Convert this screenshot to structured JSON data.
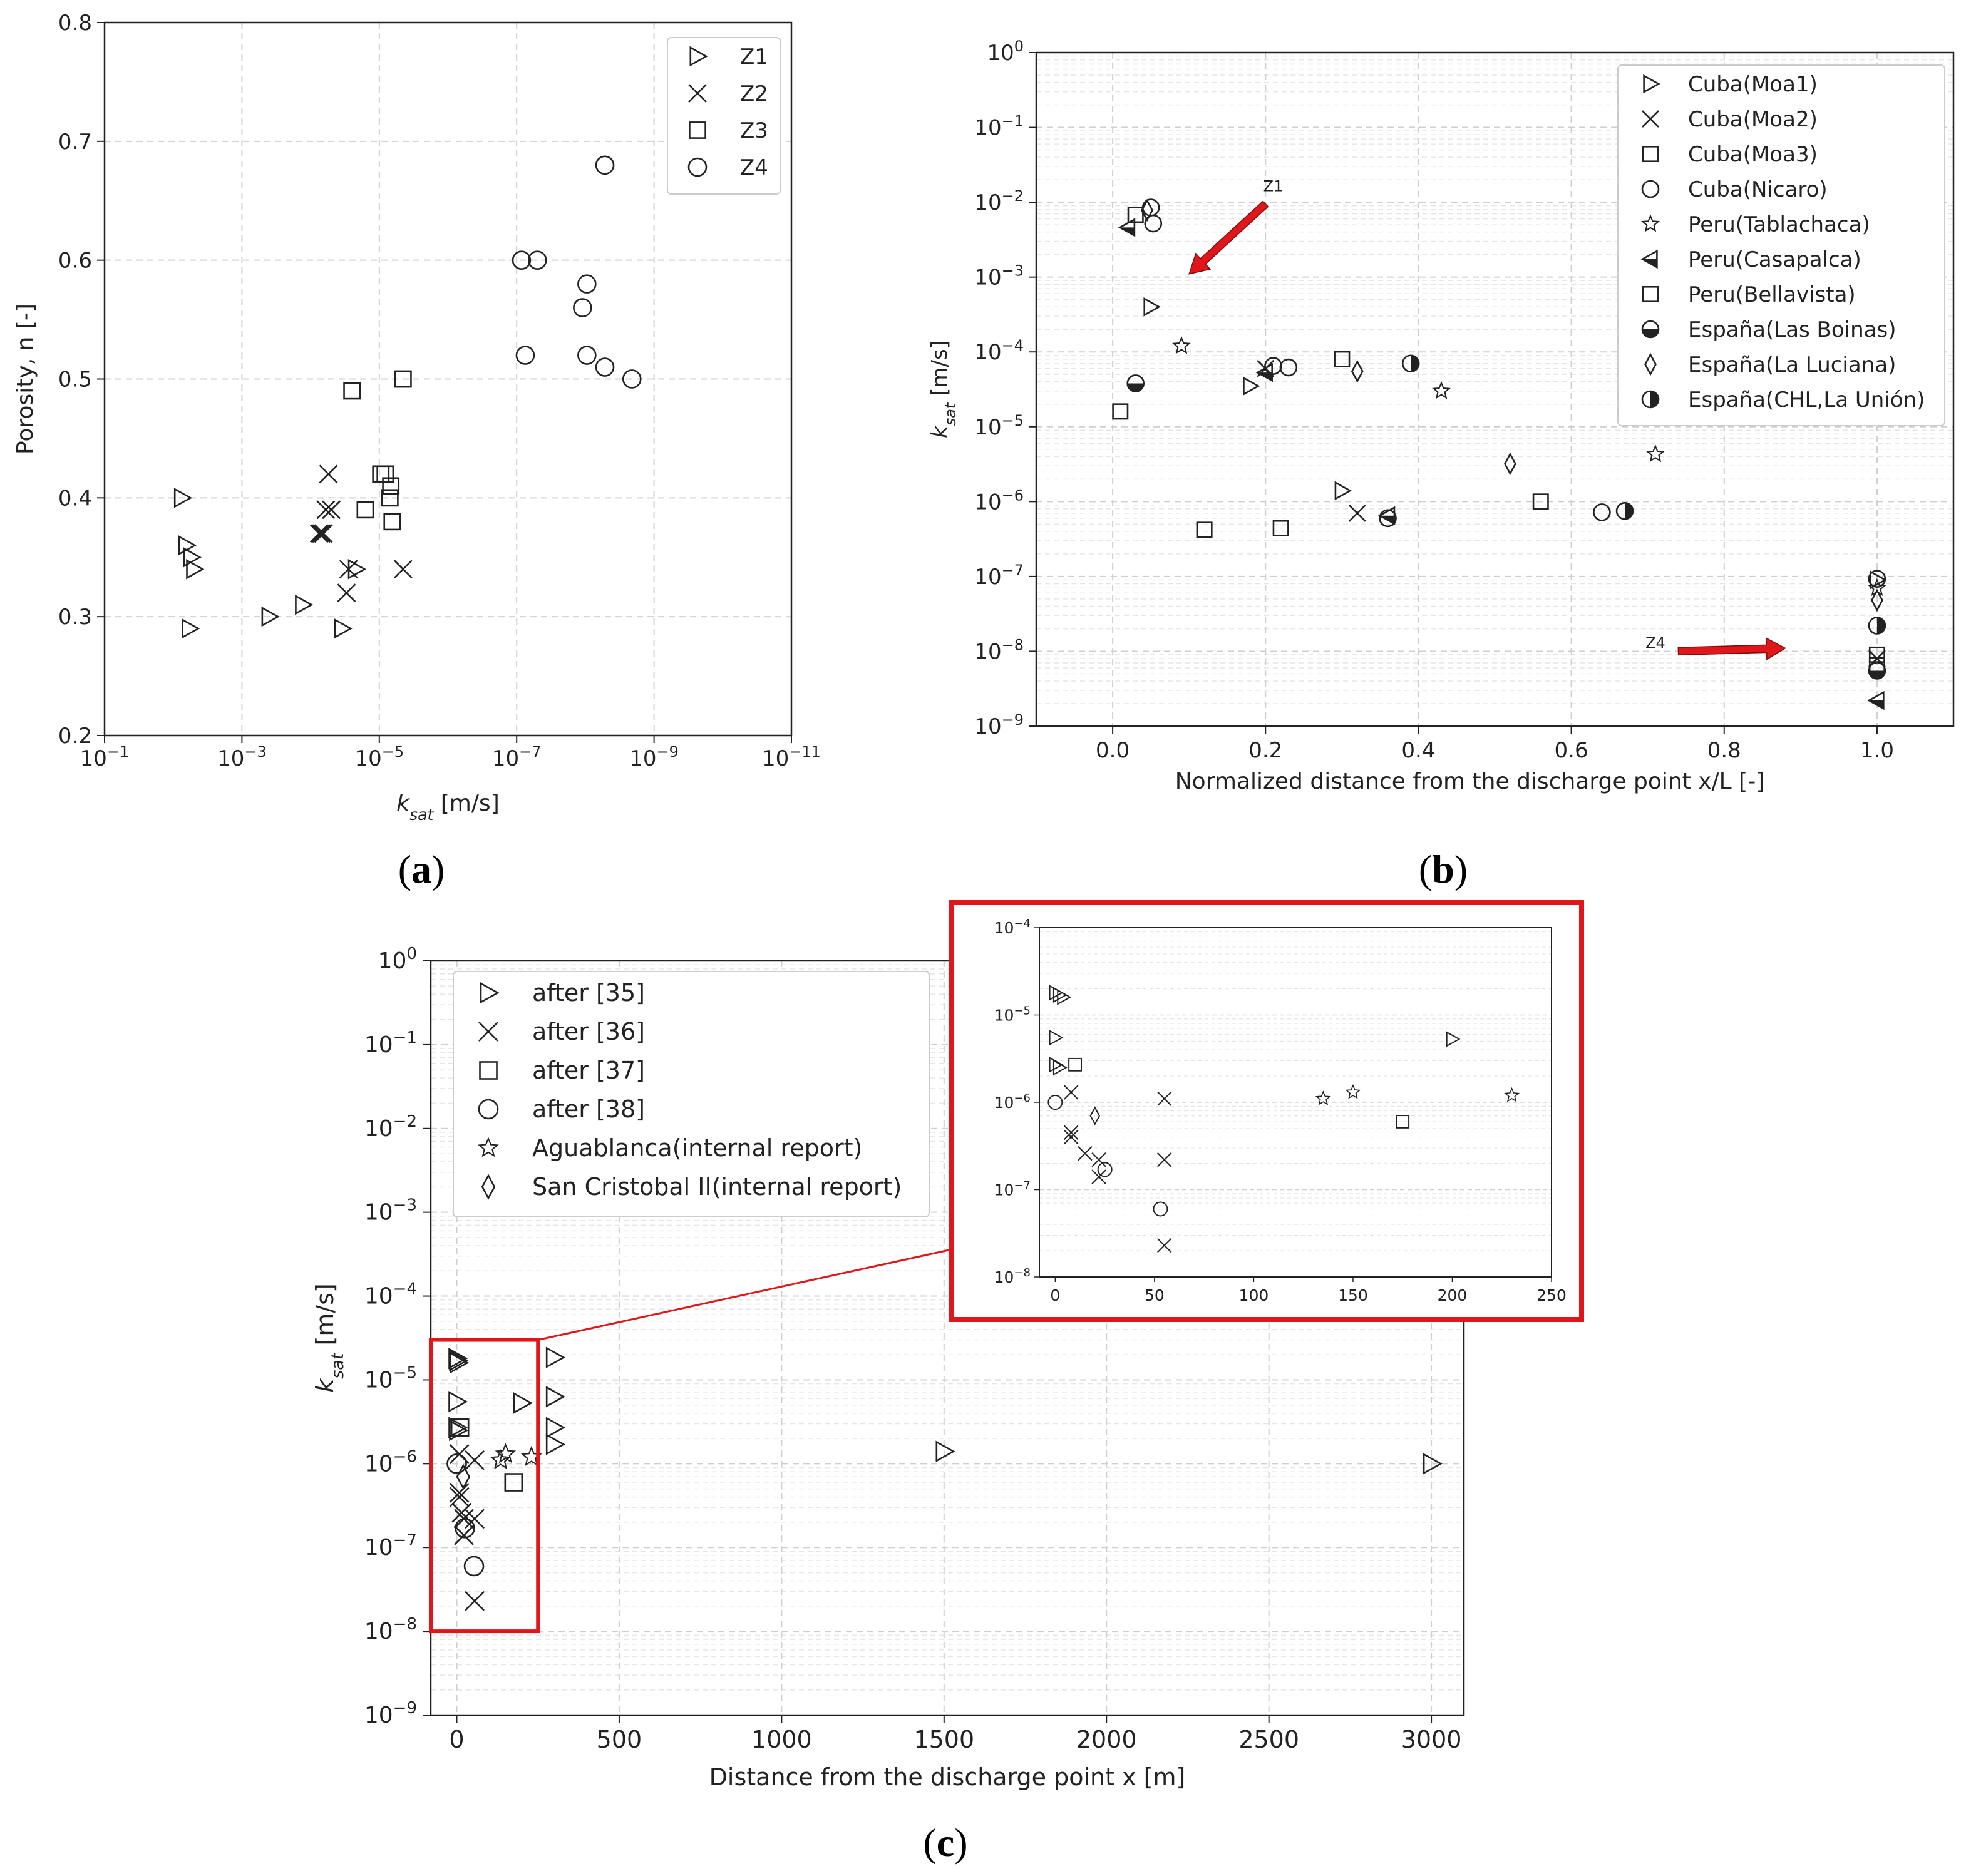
{
  "colors": {
    "frame": "#222222",
    "grid": "#cfcfcf",
    "minor_grid": "#e6e6e6",
    "red": "#e0161b",
    "marker": "#222222"
  },
  "chart_data": [
    {
      "id": "a",
      "panel_label": "a",
      "type": "scatter",
      "xscale": "log",
      "x_reversed": true,
      "xlim": [
        0.1,
        1e-11
      ],
      "ylim": [
        0.2,
        0.8
      ],
      "xlabel_main": "k",
      "xlabel_sub": "sat",
      "xlabel_unit": " [m/s]",
      "ylabel": "Porosity, n [-]",
      "x_ticks": [
        {
          "exp": -1
        },
        {
          "exp": -3
        },
        {
          "exp": -5
        },
        {
          "exp": -7
        },
        {
          "exp": -9
        },
        {
          "exp": -11
        }
      ],
      "y_ticks": [
        "0.2",
        "0.3",
        "0.4",
        "0.5",
        "0.6",
        "0.7",
        "0.8"
      ],
      "legend_position": "top-right",
      "series": [
        {
          "name": "Z1",
          "marker": "triangle-right",
          "points": [
            [
              0.0075,
              0.4
            ],
            [
              0.0065,
              0.36
            ],
            [
              0.0055,
              0.35
            ],
            [
              0.005,
              0.34
            ],
            [
              0.0058,
              0.29
            ],
            [
              0.0004,
              0.3
            ],
            [
              0.00013,
              0.31
            ],
            [
              3.5e-05,
              0.29
            ],
            [
              2.2e-05,
              0.34
            ]
          ]
        },
        {
          "name": "Z2",
          "marker": "x",
          "points": [
            [
              5.5e-05,
              0.42
            ],
            [
              6e-05,
              0.39
            ],
            [
              5e-05,
              0.39
            ],
            [
              6.5e-05,
              0.37
            ],
            [
              7.5e-05,
              0.37
            ],
            [
              7e-05,
              0.37
            ],
            [
              3e-05,
              0.32
            ],
            [
              2.8e-05,
              0.34
            ],
            [
              4.5e-06,
              0.34
            ]
          ]
        },
        {
          "name": "Z3",
          "marker": "square",
          "points": [
            [
              2.5e-05,
              0.49
            ],
            [
              4.5e-06,
              0.5
            ],
            [
              1.6e-05,
              0.39
            ],
            [
              9.5e-06,
              0.42
            ],
            [
              8.2e-06,
              0.42
            ],
            [
              6.8e-06,
              0.41
            ],
            [
              7e-06,
              0.4
            ],
            [
              6.5e-06,
              0.38
            ]
          ]
        },
        {
          "name": "Z4",
          "marker": "circle",
          "points": [
            [
              8.5e-08,
              0.6
            ],
            [
              5e-08,
              0.6
            ],
            [
              7.5e-08,
              0.52
            ],
            [
              9.5e-09,
              0.58
            ],
            [
              1.1e-08,
              0.56
            ],
            [
              9.5e-09,
              0.52
            ],
            [
              5.2e-09,
              0.68
            ],
            [
              5.2e-09,
              0.51
            ],
            [
              2.1e-09,
              0.5
            ]
          ]
        }
      ]
    },
    {
      "id": "b",
      "panel_label": "b",
      "type": "scatter",
      "yscale": "log",
      "xlim": [
        -0.1,
        1.1
      ],
      "ylim": [
        1e-09,
        1
      ],
      "xlabel": "Normalized distance from the discharge point x/L [-]",
      "ylabel_main": "k",
      "ylabel_sub": "sat",
      "ylabel_unit": " [m/s]",
      "x_ticks": [
        "0.0",
        "0.2",
        "0.4",
        "0.6",
        "0.8",
        "1.0"
      ],
      "y_ticks": [
        {
          "exp": 0
        },
        {
          "exp": -1
        },
        {
          "exp": -2
        },
        {
          "exp": -3
        },
        {
          "exp": -4
        },
        {
          "exp": -5
        },
        {
          "exp": -6
        },
        {
          "exp": -7
        },
        {
          "exp": -8
        },
        {
          "exp": -9
        }
      ],
      "legend_position": "top-right",
      "annotations": [
        {
          "text": "Z1",
          "text_at": [
            0.21,
            0.014
          ],
          "arrow_from": [
            0.2,
            0.0095
          ],
          "arrow_to": [
            0.1,
            0.0011
          ]
        },
        {
          "text": "Z4",
          "text_at": [
            0.71,
            1.1e-08
          ],
          "arrow_from": [
            0.74,
            1e-08
          ],
          "arrow_to": [
            0.88,
            1.1e-08
          ]
        }
      ],
      "series": [
        {
          "name": "Cuba(Moa1)",
          "marker": "triangle-right",
          "points": [
            [
              0.05,
              0.0004
            ],
            [
              0.18,
              3.5e-05
            ],
            [
              0.3,
              1.4e-06
            ],
            [
              1.0,
              9e-08
            ]
          ]
        },
        {
          "name": "Cuba(Moa2)",
          "marker": "x",
          "points": [
            [
              0.2,
              6e-05
            ],
            [
              0.32,
              7e-07
            ],
            [
              1.0,
              8e-09
            ]
          ]
        },
        {
          "name": "Cuba(Moa3)",
          "marker": "square",
          "points": [
            [
              0.01,
              1.6e-05
            ],
            [
              0.12,
              4.2e-07
            ],
            [
              0.22,
              4.4e-07
            ],
            [
              0.3,
              8e-05
            ],
            [
              0.56,
              1e-06
            ],
            [
              1.0,
              9e-09
            ]
          ]
        },
        {
          "name": "Cuba(Nicaro)",
          "marker": "circle",
          "points": [
            [
              0.05,
              0.0085
            ],
            [
              0.053,
              0.0052
            ],
            [
              0.21,
              6.5e-05
            ],
            [
              0.23,
              6.2e-05
            ],
            [
              0.36,
              6e-07
            ],
            [
              0.64,
              7.2e-07
            ],
            [
              1.0,
              9.3e-08
            ]
          ]
        },
        {
          "name": "Peru(Tablachaca)",
          "marker": "star",
          "points": [
            [
              0.09,
              0.00012
            ],
            [
              0.43,
              3e-05
            ],
            [
              0.71,
              4.3e-06
            ],
            [
              1.0,
              7e-08
            ]
          ]
        },
        {
          "name": "Peru(Casapalca)",
          "marker": "triangle-left-half",
          "points": [
            [
              0.02,
              0.0046
            ],
            [
              0.2,
              5.3e-05
            ],
            [
              0.36,
              6.5e-07
            ],
            [
              1.0,
              2.2e-09
            ]
          ]
        },
        {
          "name": "Peru(Bellavista)",
          "marker": "square",
          "points": [
            [
              0.03,
              0.0068
            ],
            [
              1.0,
              6.5e-09
            ]
          ]
        },
        {
          "name": "España(Las Boinas)",
          "marker": "circle-bottom",
          "points": [
            [
              0.03,
              3.8e-05
            ],
            [
              1.0,
              5.5e-09
            ]
          ]
        },
        {
          "name": "España(La Luciana)",
          "marker": "diamond",
          "points": [
            [
              0.045,
              0.0078
            ],
            [
              0.32,
              5.5e-05
            ],
            [
              0.52,
              3.2e-06
            ],
            [
              1.0,
              4.8e-08
            ]
          ]
        },
        {
          "name": "España(CHL,La Unión)",
          "marker": "circle-right",
          "points": [
            [
              0.39,
              7e-05
            ],
            [
              0.67,
              7.5e-07
            ],
            [
              1.0,
              2.2e-08
            ]
          ]
        }
      ]
    },
    {
      "id": "c",
      "panel_label": "c",
      "type": "scatter",
      "yscale": "log",
      "xlim": [
        -80,
        3100
      ],
      "ylim": [
        1e-09,
        1
      ],
      "xlabel": "Distance from the discharge point x [m]",
      "ylabel_main": "k",
      "ylabel_sub": "sat",
      "ylabel_unit": " [m/s]",
      "x_ticks": [
        "0",
        "500",
        "1000",
        "1500",
        "2000",
        "2500",
        "3000"
      ],
      "y_ticks": [
        {
          "exp": 0
        },
        {
          "exp": -1
        },
        {
          "exp": -2
        },
        {
          "exp": -3
        },
        {
          "exp": -4
        },
        {
          "exp": -5
        },
        {
          "exp": -6
        },
        {
          "exp": -7
        },
        {
          "exp": -8
        },
        {
          "exp": -9
        }
      ],
      "legend_position": "top-left",
      "series": [
        {
          "name": "after [35]",
          "marker": "triangle-right",
          "points": [
            [
              0,
              1.8e-05
            ],
            [
              2,
              1.7e-05
            ],
            [
              4,
              1.6e-05
            ],
            [
              0,
              5.5e-06
            ],
            [
              0,
              2.7e-06
            ],
            [
              2,
              2.5e-06
            ],
            [
              200,
              5.3e-06
            ],
            [
              300,
              1.85e-05
            ],
            [
              300,
              6.3e-06
            ],
            [
              300,
              2.7e-06
            ],
            [
              300,
              1.7e-06
            ],
            [
              1500,
              1.4e-06
            ],
            [
              3000,
              1e-06
            ]
          ]
        },
        {
          "name": "after [36]",
          "marker": "x",
          "points": [
            [
              8,
              1.3e-06
            ],
            [
              8,
              4.5e-07
            ],
            [
              8,
              4e-07
            ],
            [
              15,
              2.6e-07
            ],
            [
              22,
              2.2e-07
            ],
            [
              22,
              1.4e-07
            ],
            [
              55,
              1.1e-06
            ],
            [
              55,
              2.2e-07
            ],
            [
              55,
              2.3e-08
            ]
          ]
        },
        {
          "name": "after [37]",
          "marker": "square",
          "points": [
            [
              10,
              2.7e-06
            ],
            [
              175,
              6e-07
            ]
          ]
        },
        {
          "name": "after [38]",
          "marker": "circle",
          "points": [
            [
              0,
              1e-06
            ],
            [
              25,
              1.7e-07
            ],
            [
              53,
              6e-08
            ]
          ]
        },
        {
          "name": "Aguablanca(internal report)",
          "marker": "star",
          "points": [
            [
              135,
              1.1e-06
            ],
            [
              150,
              1.3e-06
            ],
            [
              230,
              1.2e-06
            ]
          ]
        },
        {
          "name": "San Cristobal II(internal report)",
          "marker": "diamond",
          "points": [
            [
              20,
              7e-07
            ]
          ]
        }
      ],
      "inset": {
        "xlim": [
          -8,
          250
        ],
        "ylim": [
          1e-08,
          0.0001
        ],
        "x_ticks": [
          "0",
          "50",
          "100",
          "150",
          "200",
          "250"
        ],
        "y_ticks": [
          {
            "exp": -4
          },
          {
            "exp": -5
          },
          {
            "exp": -6
          },
          {
            "exp": -7
          },
          {
            "exp": -8
          }
        ],
        "zoom_xlim": [
          -80,
          250
        ],
        "zoom_ylim": [
          1e-08,
          3e-05
        ]
      }
    }
  ]
}
